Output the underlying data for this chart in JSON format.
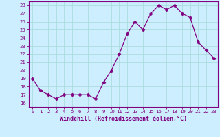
{
  "x": [
    0,
    1,
    2,
    3,
    4,
    5,
    6,
    7,
    8,
    9,
    10,
    11,
    12,
    13,
    14,
    15,
    16,
    17,
    18,
    19,
    20,
    21,
    22,
    23
  ],
  "y": [
    19,
    17.5,
    17,
    16.5,
    17,
    17,
    17,
    17,
    16.5,
    18.5,
    20,
    22,
    24.5,
    26,
    25,
    27,
    28,
    27.5,
    28,
    27,
    26.5,
    23.5,
    22.5,
    21.5
  ],
  "line_color": "#800080",
  "marker": "D",
  "marker_size": 2.5,
  "bg_color": "#cceeff",
  "grid_color": "#aadddd",
  "xlabel": "Windchill (Refroidissement éolien,°C)",
  "ylim": [
    15.5,
    28.5
  ],
  "xlim": [
    -0.5,
    23.5
  ],
  "yticks": [
    16,
    17,
    18,
    19,
    20,
    21,
    22,
    23,
    24,
    25,
    26,
    27,
    28
  ],
  "xticks": [
    0,
    1,
    2,
    3,
    4,
    5,
    6,
    7,
    8,
    9,
    10,
    11,
    12,
    13,
    14,
    15,
    16,
    17,
    18,
    19,
    20,
    21,
    22,
    23
  ],
  "tick_color": "#800080",
  "spine_color": "#800080",
  "xlabel_fontsize": 6.0,
  "tick_fontsize": 5.2
}
